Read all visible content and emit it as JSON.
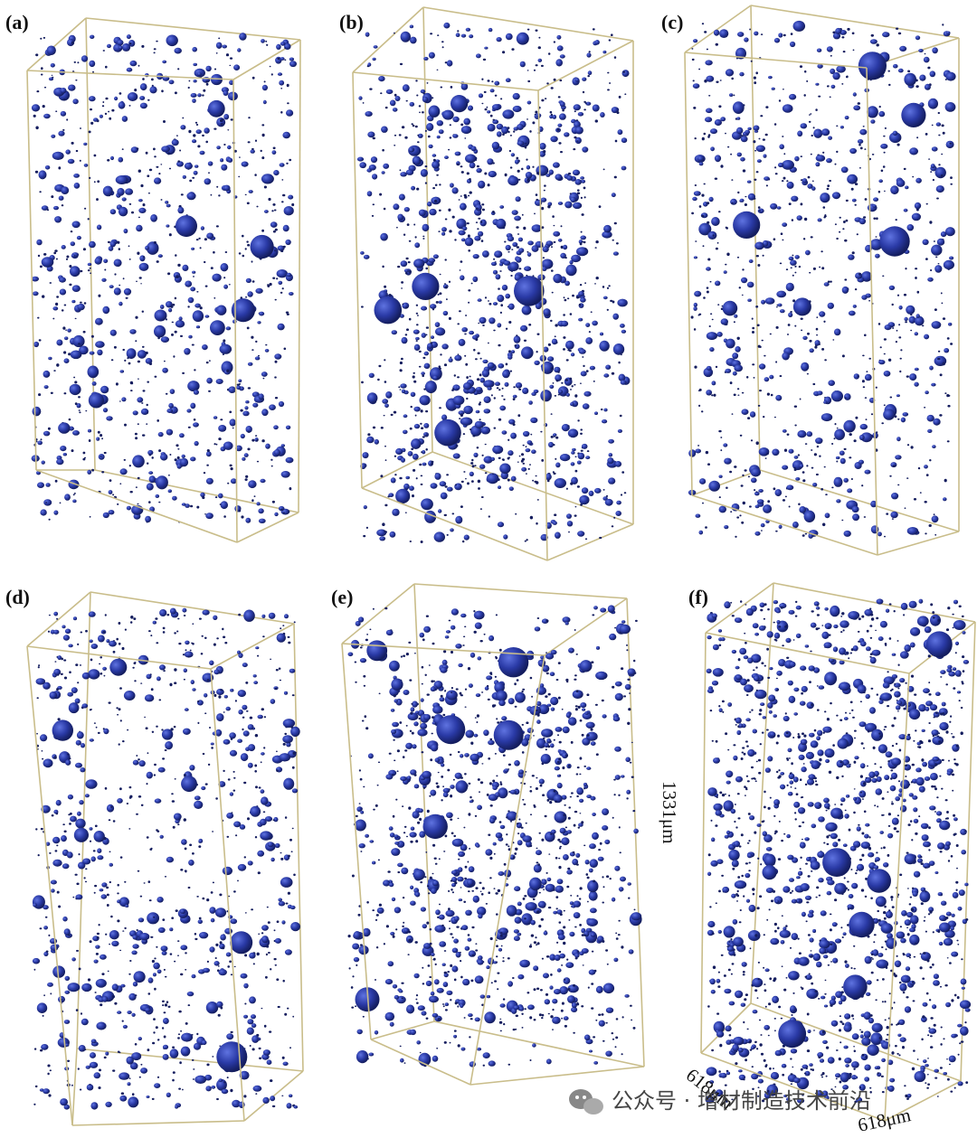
{
  "panels": [
    {
      "label": "(a)",
      "seed": 11,
      "density": "medium"
    },
    {
      "label": "(b)",
      "seed": 23,
      "density": "dense-center"
    },
    {
      "label": "(c)",
      "seed": 37,
      "density": "medium"
    },
    {
      "label": "(d)",
      "seed": 41,
      "density": "medium"
    },
    {
      "label": "(e)",
      "seed": 53,
      "density": "dense-center"
    },
    {
      "label": "(f)",
      "seed": 67,
      "density": "dense"
    }
  ],
  "dimensions": {
    "height": "1331μm",
    "width": "618μm",
    "depth": "618μm"
  },
  "watermark": {
    "text": "公众号 · 增材制造技术前沿",
    "icon": "wechat-icon"
  },
  "colors": {
    "pore": "#2a3aa6",
    "pore_dark": "#141d5e",
    "box_edge": "#c9bd8a"
  }
}
